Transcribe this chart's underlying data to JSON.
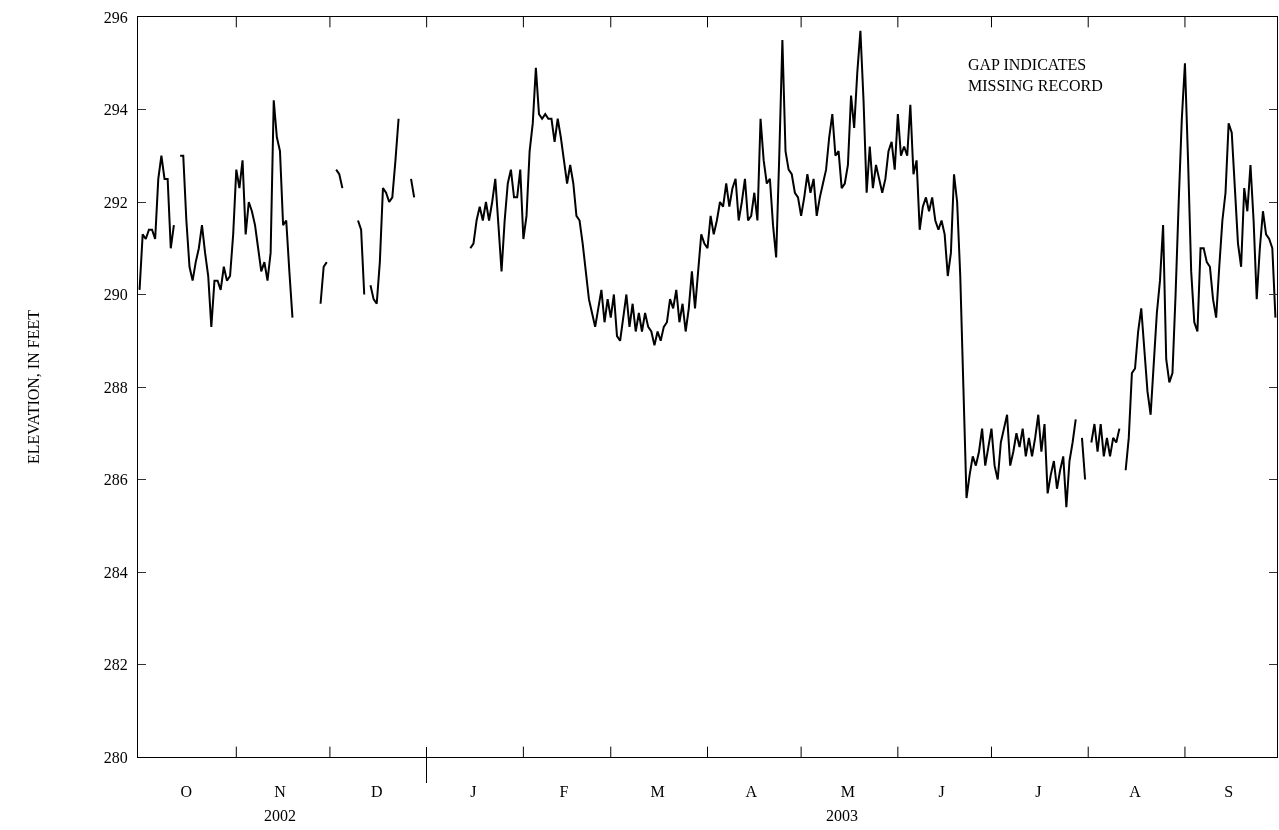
{
  "chart_data": {
    "type": "line",
    "ylabel": "ELEVATION, IN FEET",
    "color": "#000000",
    "annotations": [
      "GAP INDICATES\nMISSING RECORD",
      "2002",
      "2003"
    ],
    "ylim": [
      280,
      296
    ],
    "yticks": [
      280,
      282,
      284,
      286,
      288,
      290,
      292,
      294,
      296
    ],
    "categories": [
      null,
      null,
      null,
      null,
      null,
      null,
      null,
      null,
      null,
      null,
      null,
      null,
      null,
      null,
      null,
      "O",
      null,
      null,
      null,
      null,
      null,
      null,
      null,
      null,
      null,
      null,
      null,
      null,
      null,
      null,
      null,
      null,
      null,
      null,
      null,
      null,
      null,
      null,
      null,
      null,
      null,
      null,
      null,
      null,
      null,
      "N",
      null,
      null,
      null,
      null,
      null,
      null,
      null,
      null,
      null,
      null,
      null,
      null,
      null,
      null,
      null,
      null,
      null,
      null,
      null,
      null,
      null,
      null,
      null,
      null,
      null,
      null,
      null,
      null,
      null,
      null,
      "D",
      null,
      null,
      null,
      null,
      null,
      null,
      null,
      null,
      null,
      null,
      null,
      null,
      null,
      null,
      null,
      null,
      null,
      null,
      null,
      null,
      null,
      null,
      null,
      null,
      null,
      null,
      null,
      null,
      null,
      null,
      "J",
      null,
      null,
      null,
      null,
      null,
      null,
      null,
      null,
      null,
      null,
      null,
      null,
      null,
      null,
      null,
      null,
      null,
      null,
      null,
      null,
      null,
      null,
      null,
      null,
      null,
      null,
      null,
      null,
      "F",
      null,
      null,
      null,
      null,
      null,
      null,
      null,
      null,
      null,
      null,
      null,
      null,
      null,
      null,
      null,
      null,
      null,
      null,
      null,
      null,
      null,
      null,
      null,
      null,
      null,
      null,
      null,
      null,
      null,
      "M",
      null,
      null,
      null,
      null,
      null,
      null,
      null,
      null,
      null,
      null,
      null,
      null,
      null,
      null,
      null,
      null,
      null,
      null,
      null,
      null,
      null,
      null,
      null,
      null,
      null,
      null,
      null,
      null,
      null,
      "A",
      null,
      null,
      null,
      null,
      null,
      null,
      null,
      null,
      null,
      null,
      null,
      null,
      null,
      null,
      null,
      null,
      null,
      null,
      null,
      null,
      null,
      null,
      null,
      null,
      null,
      null,
      null,
      null,
      null,
      null,
      "M",
      null,
      null,
      null,
      null,
      null,
      null,
      null,
      null,
      null,
      null,
      null,
      null,
      null,
      null,
      null,
      null,
      null,
      null,
      null,
      null,
      null,
      null,
      null,
      null,
      null,
      null,
      null,
      null,
      null,
      "J",
      null,
      null,
      null,
      null,
      null,
      null,
      null,
      null,
      null,
      null,
      null,
      null,
      null,
      null,
      null,
      null,
      null,
      null,
      null,
      null,
      null,
      null,
      null,
      null,
      null,
      null,
      null,
      null,
      null,
      null,
      "J",
      null,
      null,
      null,
      null,
      null,
      null,
      null,
      null,
      null,
      null,
      null,
      null,
      null,
      null,
      null,
      null,
      null,
      null,
      null,
      null,
      null,
      null,
      null,
      null,
      null,
      null,
      null,
      null,
      null,
      null,
      "A",
      null,
      null,
      null,
      null,
      null,
      null,
      null,
      null,
      null,
      null,
      null,
      null,
      null,
      null,
      null,
      null,
      null,
      null,
      null,
      null,
      null,
      null,
      null,
      null,
      null,
      null,
      null,
      null,
      null,
      "S",
      null,
      null,
      null,
      null,
      null,
      null,
      null,
      null,
      null,
      null,
      null,
      null,
      null,
      null,
      null
    ],
    "values": [
      290.1,
      291.3,
      291.2,
      291.4,
      291.4,
      291.2,
      292.5,
      293.0,
      292.5,
      292.5,
      291.0,
      291.5,
      null,
      293.0,
      293.0,
      291.6,
      290.6,
      290.3,
      290.7,
      291.0,
      291.5,
      290.9,
      290.4,
      289.3,
      290.3,
      290.3,
      290.1,
      290.6,
      290.3,
      290.4,
      291.3,
      292.7,
      292.3,
      292.9,
      291.3,
      292.0,
      291.8,
      291.5,
      291.0,
      290.5,
      290.7,
      290.3,
      290.9,
      294.2,
      293.4,
      293.1,
      291.5,
      291.6,
      290.5,
      289.5,
      null,
      null,
      null,
      null,
      null,
      null,
      null,
      null,
      289.8,
      290.6,
      290.7,
      null,
      null,
      292.7,
      292.6,
      292.3,
      null,
      null,
      null,
      null,
      291.6,
      291.4,
      290.0,
      null,
      290.2,
      289.9,
      289.8,
      290.7,
      292.3,
      292.2,
      292.0,
      292.1,
      292.9,
      293.8,
      null,
      null,
      null,
      292.5,
      292.1,
      null,
      null,
      null,
      null,
      null,
      null,
      null,
      null,
      null,
      null,
      null,
      null,
      null,
      null,
      null,
      null,
      null,
      291.0,
      291.1,
      291.6,
      291.9,
      291.6,
      292.0,
      291.6,
      292.0,
      292.5,
      291.5,
      290.5,
      291.6,
      292.4,
      292.7,
      292.1,
      292.1,
      292.7,
      291.2,
      291.7,
      293.1,
      293.7,
      294.9,
      293.9,
      293.8,
      293.9,
      293.8,
      293.8,
      293.3,
      293.8,
      293.4,
      292.9,
      292.4,
      292.8,
      292.4,
      291.7,
      291.6,
      291.1,
      290.5,
      289.9,
      289.6,
      289.3,
      289.7,
      290.1,
      289.4,
      289.9,
      289.5,
      290.0,
      289.1,
      289.0,
      289.5,
      290.0,
      289.3,
      289.8,
      289.2,
      289.6,
      289.2,
      289.6,
      289.3,
      289.2,
      288.9,
      289.2,
      289.0,
      289.3,
      289.4,
      289.9,
      289.7,
      290.1,
      289.4,
      289.8,
      289.2,
      289.7,
      290.5,
      289.7,
      290.5,
      291.3,
      291.1,
      291.0,
      291.7,
      291.3,
      291.6,
      292.0,
      291.9,
      292.4,
      291.9,
      292.3,
      292.5,
      291.6,
      292.0,
      292.5,
      291.6,
      291.7,
      292.2,
      291.6,
      293.8,
      292.9,
      292.4,
      292.5,
      291.5,
      290.8,
      293.0,
      295.5,
      293.1,
      292.7,
      292.6,
      292.2,
      292.1,
      291.7,
      292.1,
      292.6,
      292.2,
      292.5,
      291.7,
      292.1,
      292.4,
      292.7,
      293.4,
      293.9,
      293.0,
      293.1,
      292.3,
      292.4,
      292.8,
      294.3,
      293.6,
      294.8,
      295.7,
      294.2,
      292.2,
      293.2,
      292.3,
      292.8,
      292.5,
      292.2,
      292.5,
      293.1,
      293.3,
      292.7,
      293.9,
      293.0,
      293.2,
      293.0,
      294.1,
      292.6,
      292.9,
      291.4,
      291.9,
      292.1,
      291.8,
      292.1,
      291.6,
      291.4,
      291.6,
      291.3,
      290.4,
      290.9,
      292.6,
      292.0,
      290.4,
      288.0,
      285.6,
      286.1,
      286.5,
      286.3,
      286.6,
      287.1,
      286.3,
      286.7,
      287.1,
      286.3,
      286.0,
      286.8,
      287.1,
      287.4,
      286.3,
      286.6,
      287.0,
      286.7,
      287.1,
      286.5,
      286.9,
      286.5,
      286.9,
      287.4,
      286.6,
      287.2,
      285.7,
      286.1,
      286.4,
      285.8,
      286.2,
      286.5,
      285.4,
      286.4,
      286.8,
      287.3,
      null,
      286.9,
      286.0,
      null,
      286.8,
      287.2,
      286.6,
      287.2,
      286.5,
      286.9,
      286.5,
      286.9,
      286.8,
      287.1,
      null,
      286.2,
      286.9,
      288.3,
      288.4,
      289.2,
      289.7,
      288.8,
      287.9,
      287.4,
      288.5,
      289.6,
      290.3,
      291.5,
      288.6,
      288.1,
      288.3,
      290.0,
      292.0,
      293.8,
      295.0,
      292.9,
      290.5,
      289.4,
      289.2,
      291.0,
      291.0,
      290.7,
      290.6,
      289.9,
      289.5,
      290.6,
      291.6,
      292.2,
      293.7,
      293.5,
      292.3,
      291.1,
      290.6,
      292.3,
      291.8,
      292.8,
      291.6,
      289.9,
      291.0,
      291.8,
      291.3,
      291.2,
      291.0,
      289.5
    ]
  }
}
